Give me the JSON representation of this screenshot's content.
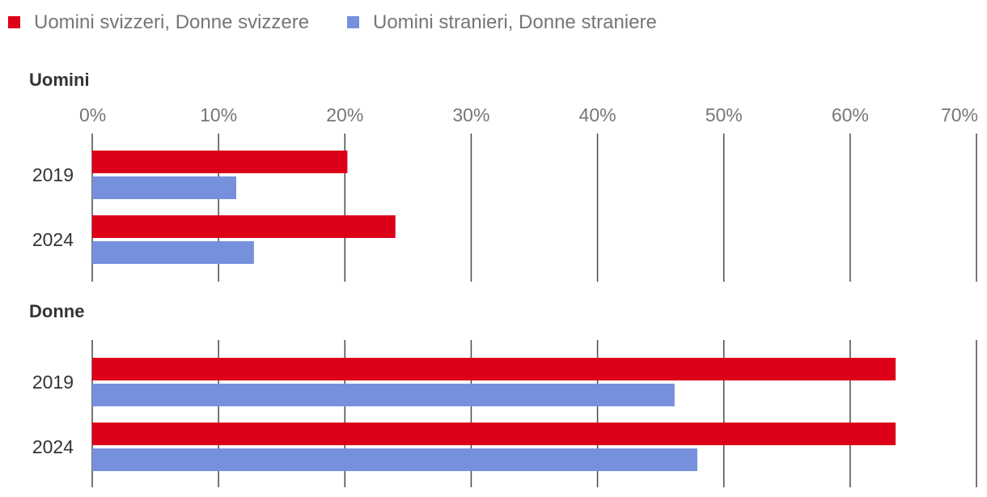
{
  "chart_data": {
    "type": "bar",
    "orientation": "horizontal",
    "legend": [
      {
        "label": "Uomini svizzeri, Donne svizzere",
        "color": "#dc0018"
      },
      {
        "label": "Uomini stranieri, Donne straniere",
        "color": "#7690dc"
      }
    ],
    "xlim": [
      0,
      70
    ],
    "xticks": [
      0,
      10,
      20,
      30,
      40,
      50,
      60,
      70
    ],
    "tick_suffix": "%",
    "panels": [
      {
        "title": "Uomini",
        "categories": [
          "2019",
          "2024"
        ],
        "series": [
          {
            "name": "Uomini svizzeri, Donne svizzere",
            "values": [
              20.2,
              24.0
            ]
          },
          {
            "name": "Uomini stranieri, Donne straniere",
            "values": [
              11.4,
              12.8
            ]
          }
        ]
      },
      {
        "title": "Donne",
        "categories": [
          "2019",
          "2024"
        ],
        "series": [
          {
            "name": "Uomini svizzeri, Donne svizzere",
            "values": [
              63.6,
              63.6
            ]
          },
          {
            "name": "Uomini stranieri, Donne straniere",
            "values": [
              46.1,
              47.9
            ]
          }
        ]
      }
    ]
  }
}
